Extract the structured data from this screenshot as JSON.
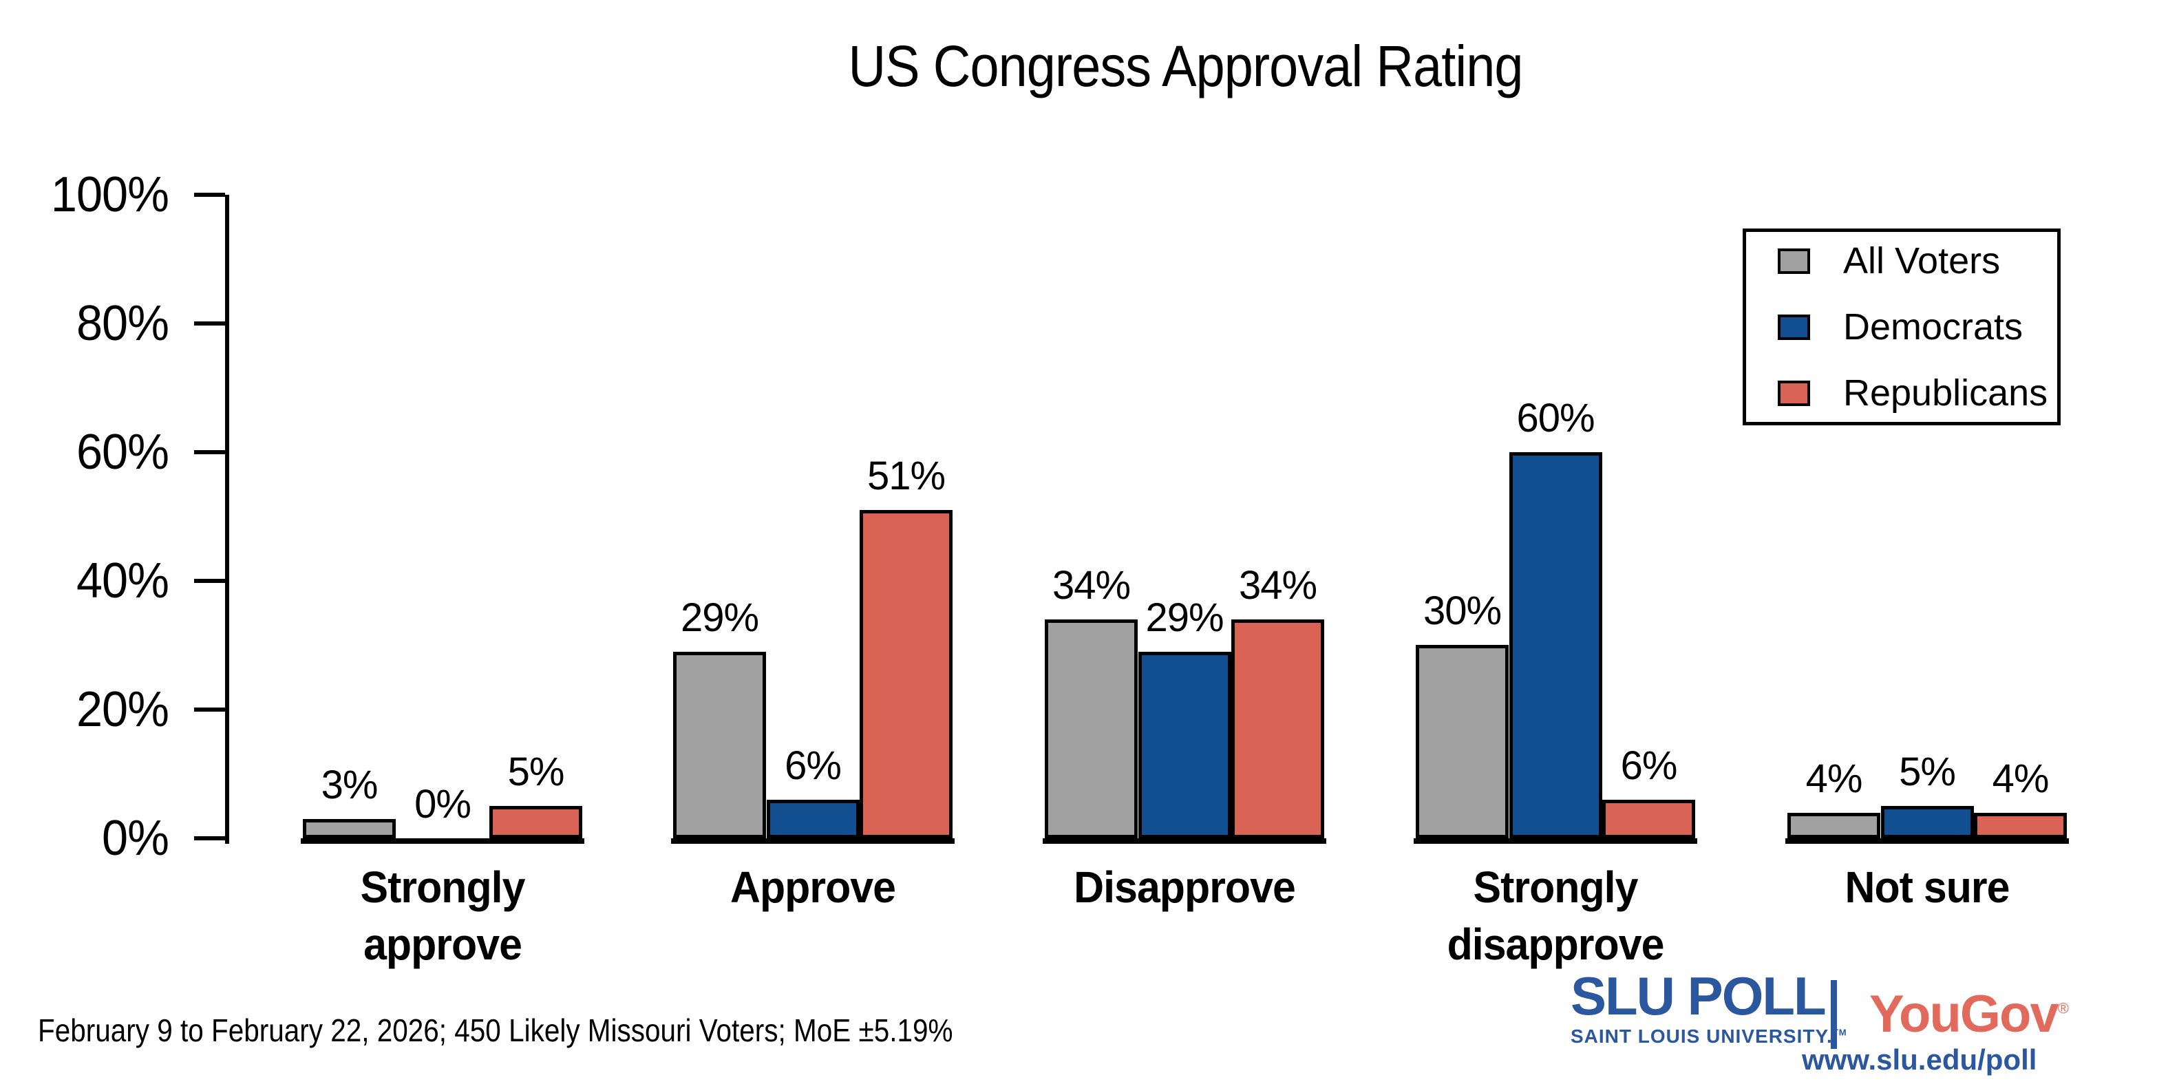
{
  "title": "US Congress Approval Rating",
  "chart_data": {
    "type": "bar",
    "title": "US Congress Approval Rating",
    "categories": [
      "Strongly approve",
      "Approve",
      "Disapprove",
      "Strongly disapprove",
      "Not sure"
    ],
    "series": [
      {
        "name": "All Voters",
        "color": "#A1A1A1",
        "values": [
          3,
          29,
          34,
          30,
          4
        ]
      },
      {
        "name": "Democrats",
        "color": "#124F90",
        "values": [
          0,
          6,
          29,
          60,
          5
        ]
      },
      {
        "name": "Republicans",
        "color": "#D96355",
        "values": [
          5,
          51,
          34,
          6,
          4
        ]
      }
    ],
    "value_suffix": "%",
    "xlabel": "",
    "ylabel": "",
    "y_ticks": [
      "0%",
      "20%",
      "40%",
      "60%",
      "80%",
      "100%"
    ],
    "ylim": [
      0,
      100
    ],
    "grid": false,
    "legend_position": "upper right",
    "bar_border_color": "#000000"
  },
  "footnote": "February 9 to February 22, 2026; 450 Likely Missouri Voters; MoE ±5.19%",
  "branding": {
    "slu_title": "SLU POLL",
    "slu_subtitle": "SAINT LOUIS UNIVERSITY.",
    "slu_tm": "TM",
    "yougov": "YouGov",
    "yougov_reg": "®",
    "url": "www.slu.edu/poll",
    "slu_blue": "#2A579E",
    "yougov_red": "#E16A5C"
  }
}
